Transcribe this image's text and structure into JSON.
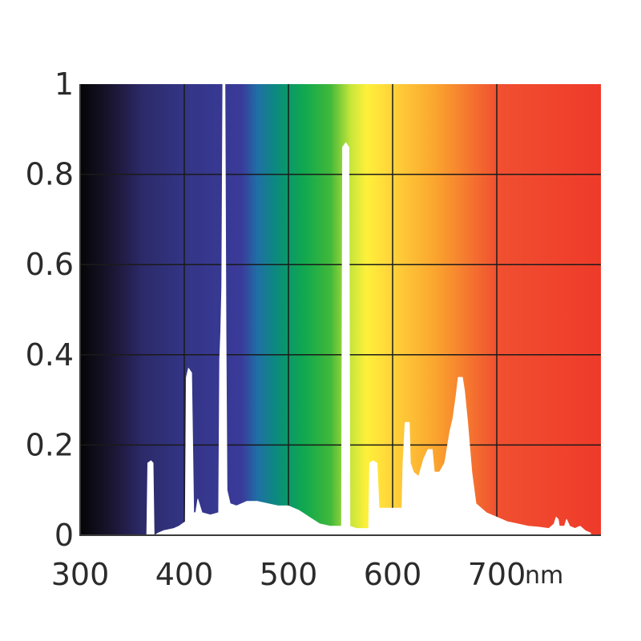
{
  "chart_data": {
    "type": "area",
    "title": "",
    "xlabel": "",
    "ylabel": "",
    "x_unit": "nm",
    "xlim": [
      300,
      800
    ],
    "ylim": [
      0,
      1
    ],
    "x_ticks": [
      {
        "value": 300,
        "label": "300"
      },
      {
        "value": 400,
        "label": "400"
      },
      {
        "value": 500,
        "label": "500"
      },
      {
        "value": 600,
        "label": "600"
      },
      {
        "value": 700,
        "label": "700"
      }
    ],
    "y_ticks": [
      {
        "value": 0,
        "label": "0"
      },
      {
        "value": 0.2,
        "label": "0.2"
      },
      {
        "value": 0.4,
        "label": "0.4"
      },
      {
        "value": 0.6,
        "label": "0.6"
      },
      {
        "value": 0.8,
        "label": "0.8"
      },
      {
        "value": 1,
        "label": "1"
      }
    ],
    "grid": true,
    "background": "visible spectrum gradient",
    "spectrum_stops": [
      {
        "x": 300,
        "color": "#050505"
      },
      {
        "x": 330,
        "color": "#1a1530"
      },
      {
        "x": 360,
        "color": "#2c2a6a"
      },
      {
        "x": 400,
        "color": "#333585"
      },
      {
        "x": 455,
        "color": "#3a3a9a"
      },
      {
        "x": 470,
        "color": "#1f6fa6"
      },
      {
        "x": 490,
        "color": "#0a8d7a"
      },
      {
        "x": 515,
        "color": "#10a84f"
      },
      {
        "x": 540,
        "color": "#3fb83a"
      },
      {
        "x": 560,
        "color": "#c8e63a"
      },
      {
        "x": 575,
        "color": "#fff03a"
      },
      {
        "x": 600,
        "color": "#ffd23a"
      },
      {
        "x": 640,
        "color": "#fba62e"
      },
      {
        "x": 700,
        "color": "#f05030"
      },
      {
        "x": 800,
        "color": "#ef3a2a"
      }
    ],
    "fill_color": "#ffffff",
    "grid_color": "#1a1a1a",
    "series": [
      {
        "points": [
          [
            364,
            0.0
          ],
          [
            365,
            0.16
          ],
          [
            368,
            0.165
          ],
          [
            370,
            0.16
          ],
          [
            371,
            0.0
          ],
          [
            372,
            0.0
          ],
          [
            375,
            0.005
          ],
          [
            380,
            0.01
          ],
          [
            390,
            0.015
          ],
          [
            395,
            0.02
          ],
          [
            401,
            0.03
          ],
          [
            402,
            0.35
          ],
          [
            404,
            0.37
          ],
          [
            407,
            0.36
          ],
          [
            409,
            0.05
          ],
          [
            411,
            0.05
          ],
          [
            413,
            0.08
          ],
          [
            417,
            0.05
          ],
          [
            425,
            0.045
          ],
          [
            433,
            0.05
          ],
          [
            434,
            0.39
          ],
          [
            435,
            0.45
          ],
          [
            436,
            0.55
          ],
          [
            437,
            1.0
          ],
          [
            439,
            1.0
          ],
          [
            440,
            0.45
          ],
          [
            441,
            0.1
          ],
          [
            444,
            0.07
          ],
          [
            450,
            0.065
          ],
          [
            460,
            0.075
          ],
          [
            470,
            0.075
          ],
          [
            480,
            0.07
          ],
          [
            490,
            0.065
          ],
          [
            500,
            0.065
          ],
          [
            510,
            0.055
          ],
          [
            520,
            0.04
          ],
          [
            530,
            0.025
          ],
          [
            540,
            0.02
          ],
          [
            545,
            0.02
          ],
          [
            551,
            0.02
          ],
          [
            552,
            0.86
          ],
          [
            555,
            0.87
          ],
          [
            558,
            0.86
          ],
          [
            559,
            0.02
          ],
          [
            565,
            0.015
          ],
          [
            570,
            0.015
          ],
          [
            577,
            0.015
          ],
          [
            578,
            0.16
          ],
          [
            581,
            0.165
          ],
          [
            585,
            0.16
          ],
          [
            587,
            0.06
          ],
          [
            590,
            0.06
          ],
          [
            596,
            0.06
          ],
          [
            600,
            0.06
          ],
          [
            609,
            0.06
          ],
          [
            610,
            0.16
          ],
          [
            612,
            0.25
          ],
          [
            616,
            0.25
          ],
          [
            617,
            0.16
          ],
          [
            620,
            0.14
          ],
          [
            625,
            0.13
          ],
          [
            630,
            0.17
          ],
          [
            634,
            0.19
          ],
          [
            638,
            0.19
          ],
          [
            640,
            0.14
          ],
          [
            645,
            0.14
          ],
          [
            650,
            0.16
          ],
          [
            655,
            0.23
          ],
          [
            658,
            0.26
          ],
          [
            661,
            0.31
          ],
          [
            663,
            0.35
          ],
          [
            667,
            0.35
          ],
          [
            669,
            0.32
          ],
          [
            672,
            0.25
          ],
          [
            676,
            0.14
          ],
          [
            680,
            0.07
          ],
          [
            690,
            0.05
          ],
          [
            700,
            0.04
          ],
          [
            710,
            0.03
          ],
          [
            720,
            0.025
          ],
          [
            730,
            0.02
          ],
          [
            740,
            0.018
          ],
          [
            750,
            0.015
          ],
          [
            755,
            0.025
          ],
          [
            757,
            0.04
          ],
          [
            759,
            0.035
          ],
          [
            760,
            0.02
          ],
          [
            765,
            0.02
          ],
          [
            767,
            0.035
          ],
          [
            770,
            0.02
          ],
          [
            775,
            0.015
          ],
          [
            780,
            0.02
          ],
          [
            785,
            0.01
          ],
          [
            790,
            0.005
          ]
        ]
      }
    ]
  }
}
